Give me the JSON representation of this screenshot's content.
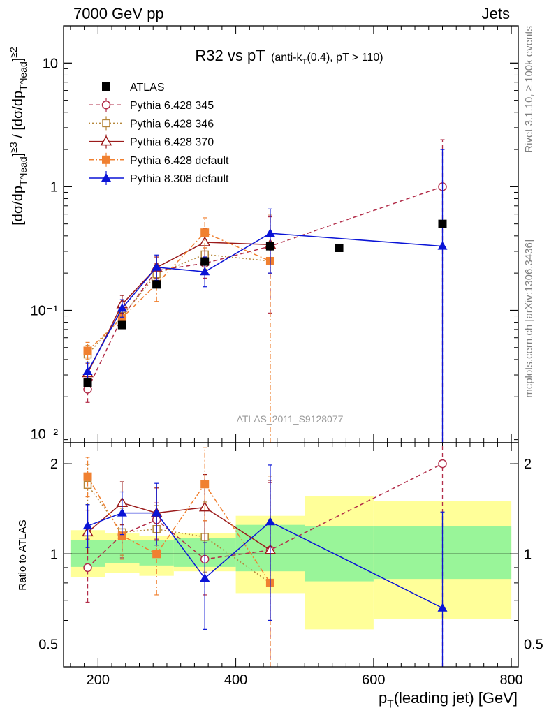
{
  "header": {
    "left": "7000 GeV pp",
    "right": "Jets"
  },
  "side_labels": {
    "rivet": "Rivet 3.1.10, ≥ 100k events",
    "mcplots": "mcplots.cern.ch [arXiv:1306.3436]"
  },
  "chart_data": [
    {
      "type": "line",
      "panel": "main",
      "title": "R32 vs pT",
      "subtitle": "(anti-k_T(0.4), pT > 110)",
      "analysis_label": "ATLAS_2011_S9128077",
      "ylabel": "[dσ/dp_T^lead]^{≥3} / [dσ/dp_T^lead]^{≥2}",
      "yscale": "log",
      "xlim": [
        150,
        810
      ],
      "ylim": [
        0.0085,
        20
      ],
      "x_ticks": [
        200,
        400,
        600,
        800
      ],
      "y_ticks": [
        {
          "value": 0.01,
          "label": "10⁻²"
        },
        {
          "value": 0.1,
          "label": "10⁻¹"
        },
        {
          "value": 1,
          "label": "1"
        },
        {
          "value": 10,
          "label": "10"
        }
      ],
      "legend_position": "top-left",
      "series": [
        {
          "name": "ATLAS",
          "color": "#000000",
          "marker": "square-filled",
          "line": "none",
          "x": [
            185,
            235,
            285,
            355,
            450,
            550,
            700
          ],
          "y": [
            0.026,
            0.076,
            0.162,
            0.248,
            0.33,
            0.32,
            0.5
          ],
          "yerr_low": [
            0.026,
            0.076,
            0.162,
            0.248,
            0.33,
            0.32,
            0.5
          ],
          "yerr_high": [
            0.026,
            0.076,
            0.162,
            0.248,
            0.33,
            0.32,
            0.5
          ]
        },
        {
          "name": "Pythia 6.428 345",
          "color": "#b22d49",
          "marker": "circle-open",
          "line": "dashed",
          "x": [
            185,
            235,
            285,
            355,
            450,
            700
          ],
          "y": [
            0.023,
            0.088,
            0.21,
            0.24,
            0.33,
            1.0
          ],
          "yerr_low": [
            0.018,
            0.074,
            0.182,
            0.182,
            0.095,
            0.001
          ],
          "yerr_high": [
            0.029,
            0.104,
            0.24,
            0.32,
            0.57,
            2.4
          ]
        },
        {
          "name": "Pythia 6.428 346",
          "color": "#b5863a",
          "marker": "square-open",
          "line": "dotted",
          "x": [
            185,
            235,
            285,
            355,
            450
          ],
          "y": [
            0.044,
            0.09,
            0.196,
            0.283,
            0.25
          ],
          "yerr_low": [
            0.038,
            0.075,
            0.162,
            0.215,
            0.001
          ],
          "yerr_high": [
            0.052,
            0.108,
            0.235,
            0.37,
            0.6
          ]
        },
        {
          "name": "Pythia 6.428 370",
          "color": "#9b1b1b",
          "marker": "triangle-open",
          "line": "solid",
          "x": [
            185,
            235,
            285,
            355,
            450
          ],
          "y": [
            0.031,
            0.112,
            0.222,
            0.355,
            0.34
          ],
          "yerr_low": [
            0.026,
            0.095,
            0.18,
            0.27,
            0.2
          ],
          "yerr_high": [
            0.037,
            0.132,
            0.27,
            0.46,
            0.58
          ]
        },
        {
          "name": "Pythia 6.428 default",
          "color": "#f08030",
          "marker": "square-filled",
          "line": "dashdot",
          "x": [
            185,
            235,
            285,
            355,
            450
          ],
          "y": [
            0.047,
            0.087,
            0.163,
            0.425,
            0.25
          ],
          "yerr_low": [
            0.04,
            0.072,
            0.118,
            0.32,
            0.001
          ],
          "yerr_high": [
            0.055,
            0.104,
            0.22,
            0.56,
            0.6
          ]
        },
        {
          "name": "Pythia 8.308 default",
          "color": "#0a14d6",
          "marker": "triangle-filled",
          "line": "solid",
          "x": [
            185,
            235,
            285,
            355,
            450,
            700
          ],
          "y": [
            0.032,
            0.104,
            0.223,
            0.205,
            0.42,
            0.33
          ],
          "yerr_low": [
            0.027,
            0.088,
            0.175,
            0.155,
            0.2,
            0.001
          ],
          "yerr_high": [
            0.038,
            0.122,
            0.28,
            0.27,
            0.66,
            2.0
          ]
        }
      ]
    },
    {
      "type": "line",
      "panel": "ratio",
      "ylabel": "Ratio to ATLAS",
      "xlabel": "p_T(leading jet) [GeV]",
      "yscale": "log",
      "xlim": [
        150,
        810
      ],
      "ylim": [
        0.42,
        2.35
      ],
      "x_ticks": [
        200,
        400,
        600,
        800
      ],
      "y_ticks": [
        {
          "value": 0.5,
          "label": "0.5"
        },
        {
          "value": 1,
          "label": "1"
        },
        {
          "value": 2,
          "label": "2"
        }
      ],
      "reference_line": 1,
      "bands": [
        {
          "x0": 160,
          "x1": 210,
          "stat": [
            0.905,
            1.115
          ],
          "total": [
            0.835,
            1.2
          ]
        },
        {
          "x0": 210,
          "x1": 260,
          "stat": [
            0.93,
            1.11
          ],
          "total": [
            0.865,
            1.175
          ]
        },
        {
          "x0": 260,
          "x1": 310,
          "stat": [
            0.915,
            1.115
          ],
          "total": [
            0.845,
            1.15
          ]
        },
        {
          "x0": 310,
          "x1": 400,
          "stat": [
            0.905,
            1.13
          ],
          "total": [
            0.875,
            1.17
          ]
        },
        {
          "x0": 400,
          "x1": 500,
          "stat": [
            0.875,
            1.25
          ],
          "total": [
            0.74,
            1.34
          ]
        },
        {
          "x0": 500,
          "x1": 600,
          "stat": [
            0.81,
            1.24
          ],
          "total": [
            0.56,
            1.56
          ]
        },
        {
          "x0": 600,
          "x1": 800,
          "stat": [
            0.825,
            1.24
          ],
          "total": [
            0.605,
            1.5
          ]
        }
      ],
      "series": [
        {
          "name": "Pythia 6.428 345",
          "x": [
            185,
            235,
            285,
            355,
            450,
            700
          ],
          "y": [
            0.9,
            1.16,
            1.3,
            0.96,
            1.03,
            2.0
          ],
          "yerr_low": [
            0.69,
            0.97,
            1.12,
            0.73,
            0.29,
            0.001
          ],
          "yerr_high": [
            1.12,
            1.37,
            1.48,
            1.29,
            1.73,
            4.8
          ]
        },
        {
          "name": "Pythia 6.428 346",
          "x": [
            185,
            235,
            285,
            355,
            450
          ],
          "y": [
            1.7,
            1.18,
            1.21,
            1.14,
            0.8
          ],
          "yerr_low": [
            1.46,
            0.99,
            1.0,
            0.87,
            0.001
          ],
          "yerr_high": [
            1.99,
            1.42,
            1.45,
            1.49,
            1.82
          ]
        },
        {
          "name": "Pythia 6.428 370",
          "x": [
            185,
            235,
            285,
            355,
            450
          ],
          "y": [
            1.18,
            1.48,
            1.37,
            1.43,
            1.03
          ],
          "yerr_low": [
            1.0,
            1.25,
            1.11,
            1.09,
            0.6
          ],
          "yerr_high": [
            1.4,
            1.74,
            1.66,
            1.84,
            1.76
          ]
        },
        {
          "name": "Pythia 6.428 default",
          "x": [
            185,
            235,
            285,
            355,
            450
          ],
          "y": [
            1.81,
            1.15,
            1.0,
            1.71,
            0.8
          ],
          "yerr_low": [
            1.55,
            0.96,
            0.73,
            1.29,
            0.001
          ],
          "yerr_high": [
            2.1,
            1.38,
            1.36,
            2.26,
            1.82
          ]
        },
        {
          "name": "Pythia 8.308 default",
          "x": [
            185,
            235,
            285,
            355,
            450,
            700
          ],
          "y": [
            1.24,
            1.37,
            1.37,
            0.83,
            1.28,
            0.66
          ],
          "yerr_low": [
            1.05,
            1.16,
            1.07,
            0.56,
            0.6,
            0.001
          ],
          "yerr_high": [
            1.46,
            1.61,
            1.72,
            1.09,
            1.98,
            1.38
          ]
        }
      ]
    }
  ]
}
